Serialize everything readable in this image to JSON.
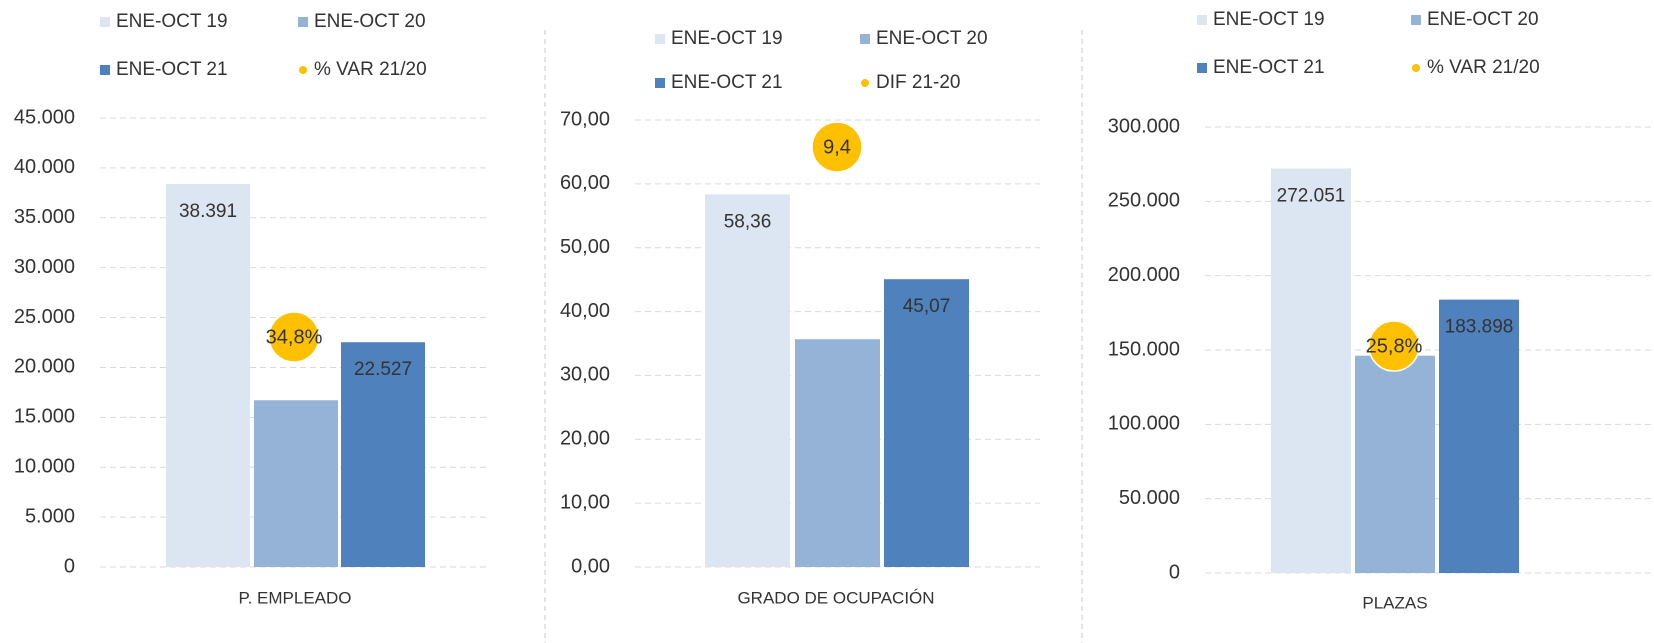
{
  "chart_data": [
    {
      "type": "bar",
      "categories": [
        "P. EMPLEADO"
      ],
      "series": [
        {
          "name": "ENE-OCT 19",
          "color": "#dce6f2",
          "values": [
            38391
          ],
          "value_labels": [
            "38.391"
          ]
        },
        {
          "name": "ENE-OCT 20",
          "color": "#95b3d7",
          "values": [
            16711
          ]
        },
        {
          "name": "ENE-OCT 21",
          "color": "#4f81bd",
          "values": [
            22527
          ],
          "value_labels": [
            "22.527"
          ]
        },
        {
          "name": "% VAR 21/20",
          "color": "#ffc000",
          "marker": "circle",
          "values": [
            34.8
          ],
          "value_labels": [
            "34,8%"
          ]
        }
      ],
      "ylim": [
        0,
        45000
      ],
      "yticks": [
        0,
        {
          "value": 5000,
          "label": "5.000"
        },
        {
          "value": 10000,
          "label": "10.000"
        },
        {
          "value": 15000,
          "label": "15.000"
        },
        {
          "value": 20000,
          "label": "20.000"
        },
        {
          "value": 25000,
          "label": "25.000"
        },
        {
          "value": 30000,
          "label": "30.000"
        },
        {
          "value": 35000,
          "label": "35.000"
        },
        {
          "value": 40000,
          "label": "40.000"
        },
        {
          "value": 45000,
          "label": "45.000"
        }
      ],
      "grid": true
    },
    {
      "type": "bar",
      "categories": [
        "GRADO DE OCUPACIÓN"
      ],
      "series": [
        {
          "name": "ENE-OCT 19",
          "color": "#dce6f2",
          "values": [
            58.36
          ],
          "value_labels": [
            "58,36"
          ]
        },
        {
          "name": "ENE-OCT 20",
          "color": "#95b3d7",
          "values": [
            35.67
          ]
        },
        {
          "name": "ENE-OCT 21",
          "color": "#4f81bd",
          "values": [
            45.07
          ],
          "value_labels": [
            "45,07"
          ]
        },
        {
          "name": "DIF 21-20",
          "color": "#ffc000",
          "marker": "circle",
          "values": [
            9.4
          ],
          "value_labels": [
            "9,4"
          ]
        }
      ],
      "ylim": [
        0,
        70
      ],
      "yticks": [
        {
          "value": 0,
          "label": "0,00"
        },
        {
          "value": 10,
          "label": "10,00"
        },
        {
          "value": 20,
          "label": "20,00"
        },
        {
          "value": 30,
          "label": "30,00"
        },
        {
          "value": 40,
          "label": "40,00"
        },
        {
          "value": 50,
          "label": "50,00"
        },
        {
          "value": 60,
          "label": "60,00"
        },
        {
          "value": 70,
          "label": "70,00"
        }
      ],
      "grid": true
    },
    {
      "type": "bar",
      "categories": [
        "PLAZAS"
      ],
      "series": [
        {
          "name": "ENE-OCT 19",
          "color": "#dce6f2",
          "values": [
            272051
          ],
          "value_labels": [
            "272.051"
          ]
        },
        {
          "name": "ENE-OCT 20",
          "color": "#95b3d7",
          "values": [
            146183
          ]
        },
        {
          "name": "ENE-OCT 21",
          "color": "#4f81bd",
          "values": [
            183898
          ],
          "value_labels": [
            "183.898"
          ]
        },
        {
          "name": "% VAR 21/20",
          "color": "#ffc000",
          "marker": "circle",
          "values": [
            25.8
          ],
          "value_labels": [
            "25,8%"
          ]
        }
      ],
      "ylim": [
        0,
        300000
      ],
      "yticks": [
        0,
        {
          "value": 50000,
          "label": "50.000"
        },
        {
          "value": 100000,
          "label": "100.000"
        },
        {
          "value": 150000,
          "label": "150.000"
        },
        {
          "value": 200000,
          "label": "200.000"
        },
        {
          "value": 250000,
          "label": "250.000"
        },
        {
          "value": 300000,
          "label": "300.000"
        }
      ],
      "grid": true
    }
  ]
}
